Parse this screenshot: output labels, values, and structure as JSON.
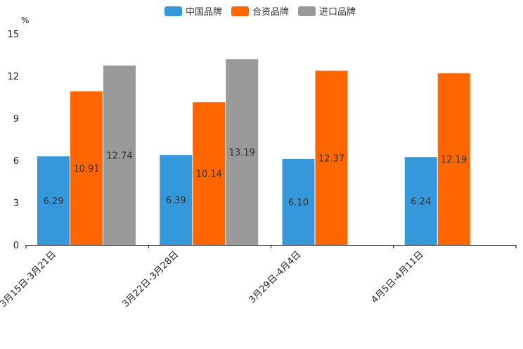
{
  "chart_data": {
    "type": "bar",
    "unit": "%",
    "categories": [
      "3月15日-3月21日",
      "3月22日-3月28日",
      "3月29日-4月4日",
      "4月5日-4月11日"
    ],
    "series": [
      {
        "name": "中国品牌",
        "color": "#3498db",
        "values": [
          6.29,
          6.39,
          6.1,
          6.24
        ],
        "labels": [
          "6.29",
          "6.39",
          "6.10",
          "6.24"
        ]
      },
      {
        "name": "合资品牌",
        "color": "#ff6600",
        "values": [
          10.91,
          10.14,
          12.37,
          12.19
        ],
        "labels": [
          "10.91",
          "10.14",
          "12.37",
          "12.19"
        ]
      },
      {
        "name": "进口品牌",
        "color": "#999999",
        "values": [
          12.74,
          13.19,
          null,
          null
        ],
        "labels": [
          "12.74",
          "13.19",
          "",
          ""
        ]
      }
    ],
    "ylim": [
      0,
      15
    ],
    "yticks": [
      0,
      3,
      6,
      9,
      12,
      15
    ],
    "legend_position": "top-center",
    "grid": false
  }
}
